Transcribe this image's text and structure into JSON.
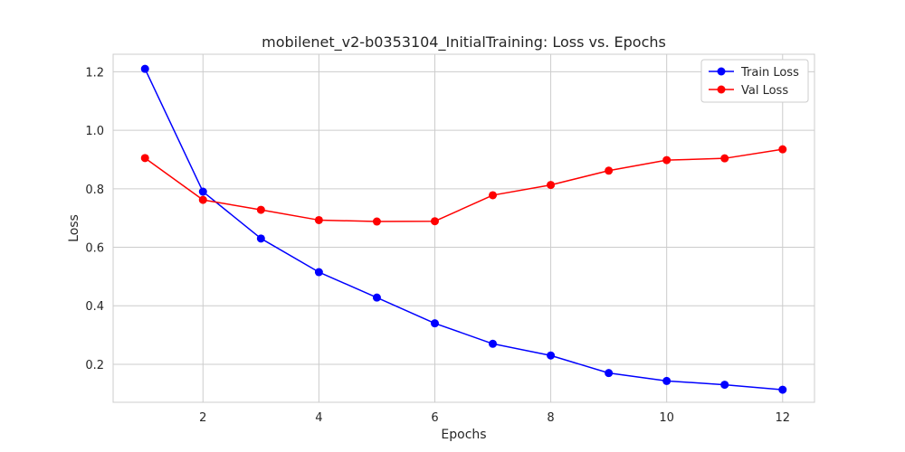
{
  "chart_data": {
    "type": "line",
    "title": "mobilenet_v2-b0353104_InitialTraining: Loss vs. Epochs",
    "xlabel": "Epochs",
    "ylabel": "Loss",
    "x": [
      1,
      2,
      3,
      4,
      5,
      6,
      7,
      8,
      9,
      10,
      11,
      12
    ],
    "xlim": [
      0.45,
      12.55
    ],
    "ylim": [
      0.07,
      1.26
    ],
    "xticks": [
      2,
      4,
      6,
      8,
      10,
      12
    ],
    "yticks": [
      0.2,
      0.4,
      0.6,
      0.8,
      1.0,
      1.2
    ],
    "xtick_labels": [
      "2",
      "4",
      "6",
      "8",
      "10",
      "12"
    ],
    "ytick_labels": [
      "0.2",
      "0.4",
      "0.6",
      "0.8",
      "1.0",
      "1.2"
    ],
    "grid": true,
    "legend_position": "top-right",
    "series": [
      {
        "name": "Train Loss",
        "color": "#0000ff",
        "values": [
          1.21,
          0.79,
          0.63,
          0.515,
          0.428,
          0.34,
          0.27,
          0.23,
          0.17,
          0.143,
          0.13,
          0.113
        ]
      },
      {
        "name": "Val Loss",
        "color": "#ff0000",
        "values": [
          0.905,
          0.762,
          0.728,
          0.693,
          0.688,
          0.689,
          0.778,
          0.813,
          0.862,
          0.898,
          0.904,
          0.935
        ]
      }
    ]
  }
}
